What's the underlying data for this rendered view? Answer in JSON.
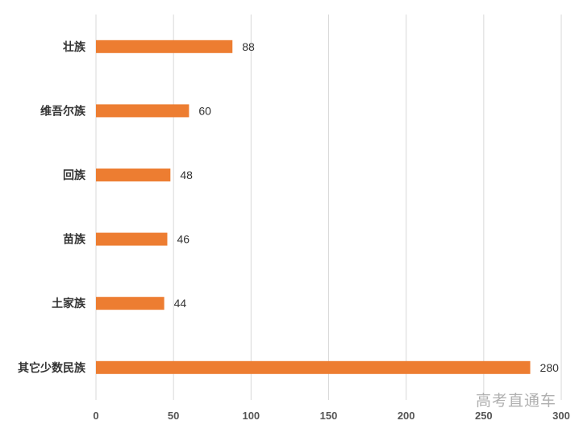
{
  "chart_data": {
    "type": "bar",
    "orientation": "horizontal",
    "categories": [
      "壮族",
      "维吾尔族",
      "回族",
      "苗族",
      "土家族",
      "其它少数民族"
    ],
    "values": [
      88,
      60,
      48,
      46,
      44,
      280
    ],
    "data_labels": [
      "88",
      "60",
      "48",
      "46",
      "44",
      "280"
    ],
    "xlim": [
      0,
      300
    ],
    "x_ticks": [
      "0",
      "50",
      "100",
      "150",
      "200",
      "250",
      "300"
    ],
    "x_tick_values": [
      0,
      50,
      100,
      150,
      200,
      250,
      300
    ],
    "grid": true,
    "bar_color": "#ed7d31",
    "title": "",
    "xlabel": "",
    "ylabel": ""
  },
  "watermark": "高考直通车"
}
